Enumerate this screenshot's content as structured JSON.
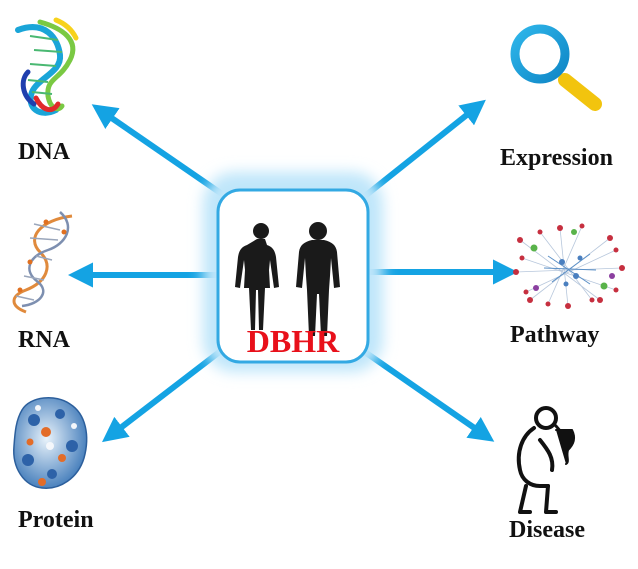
{
  "center": {
    "label": "DBHR",
    "label_color": "#e8101a",
    "glow_color": "#bfe6fa",
    "border_color": "#33a9e3"
  },
  "arrow_color": "#14a3e3",
  "nodes": [
    {
      "id": "dna",
      "label": "DNA",
      "icon": "dna-helix-icon"
    },
    {
      "id": "rna",
      "label": "RNA",
      "icon": "rna-strand-icon"
    },
    {
      "id": "protein",
      "label": "Protein",
      "icon": "protein-surface-icon"
    },
    {
      "id": "expression",
      "label": "Expression",
      "icon": "magnifier-icon"
    },
    {
      "id": "pathway",
      "label": "Pathway",
      "icon": "network-graph-icon"
    },
    {
      "id": "disease",
      "label": "Disease",
      "icon": "sick-person-icon"
    }
  ]
}
